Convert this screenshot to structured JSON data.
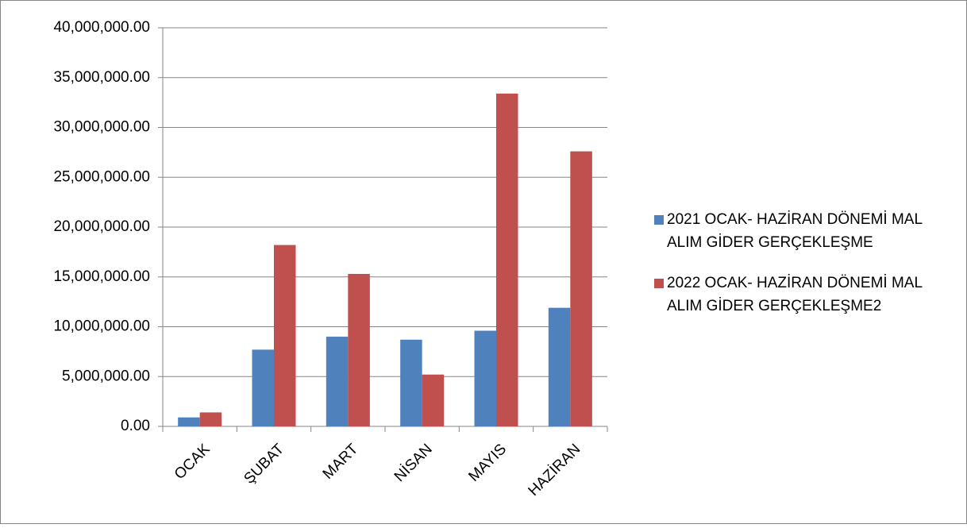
{
  "chart_data": {
    "type": "bar",
    "categories": [
      "OCAK",
      "ŞUBAT",
      "MART",
      "NİSAN",
      "MAYIS",
      "HAZİRAN"
    ],
    "series": [
      {
        "name": "2021 OCAK- HAZİRAN DÖNEMİ MAL ALIM GİDER GERÇEKLEŞME",
        "color": "#4f81bd",
        "values": [
          900000,
          7700000,
          9000000,
          8700000,
          9600000,
          11900000
        ]
      },
      {
        "name": "2022 OCAK- HAZİRAN DÖNEMİ MAL ALIM GİDER GERÇEKLEŞME2",
        "color": "#c0504d",
        "values": [
          1400000,
          18200000,
          15300000,
          5200000,
          33400000,
          27600000
        ]
      }
    ],
    "ylim": [
      0,
      40000000
    ],
    "yticks": [
      {
        "value": 0,
        "label": "0.00"
      },
      {
        "value": 5000000,
        "label": "5,000,000.00"
      },
      {
        "value": 10000000,
        "label": "10,000,000.00"
      },
      {
        "value": 15000000,
        "label": "15,000,000.00"
      },
      {
        "value": 20000000,
        "label": "20,000,000.00"
      },
      {
        "value": 25000000,
        "label": "25,000,000.00"
      },
      {
        "value": 30000000,
        "label": "30,000,000.00"
      },
      {
        "value": 35000000,
        "label": "35,000,000.00"
      },
      {
        "value": 40000000,
        "label": "40,000,000.00"
      }
    ],
    "grid": true,
    "legend": "right"
  }
}
